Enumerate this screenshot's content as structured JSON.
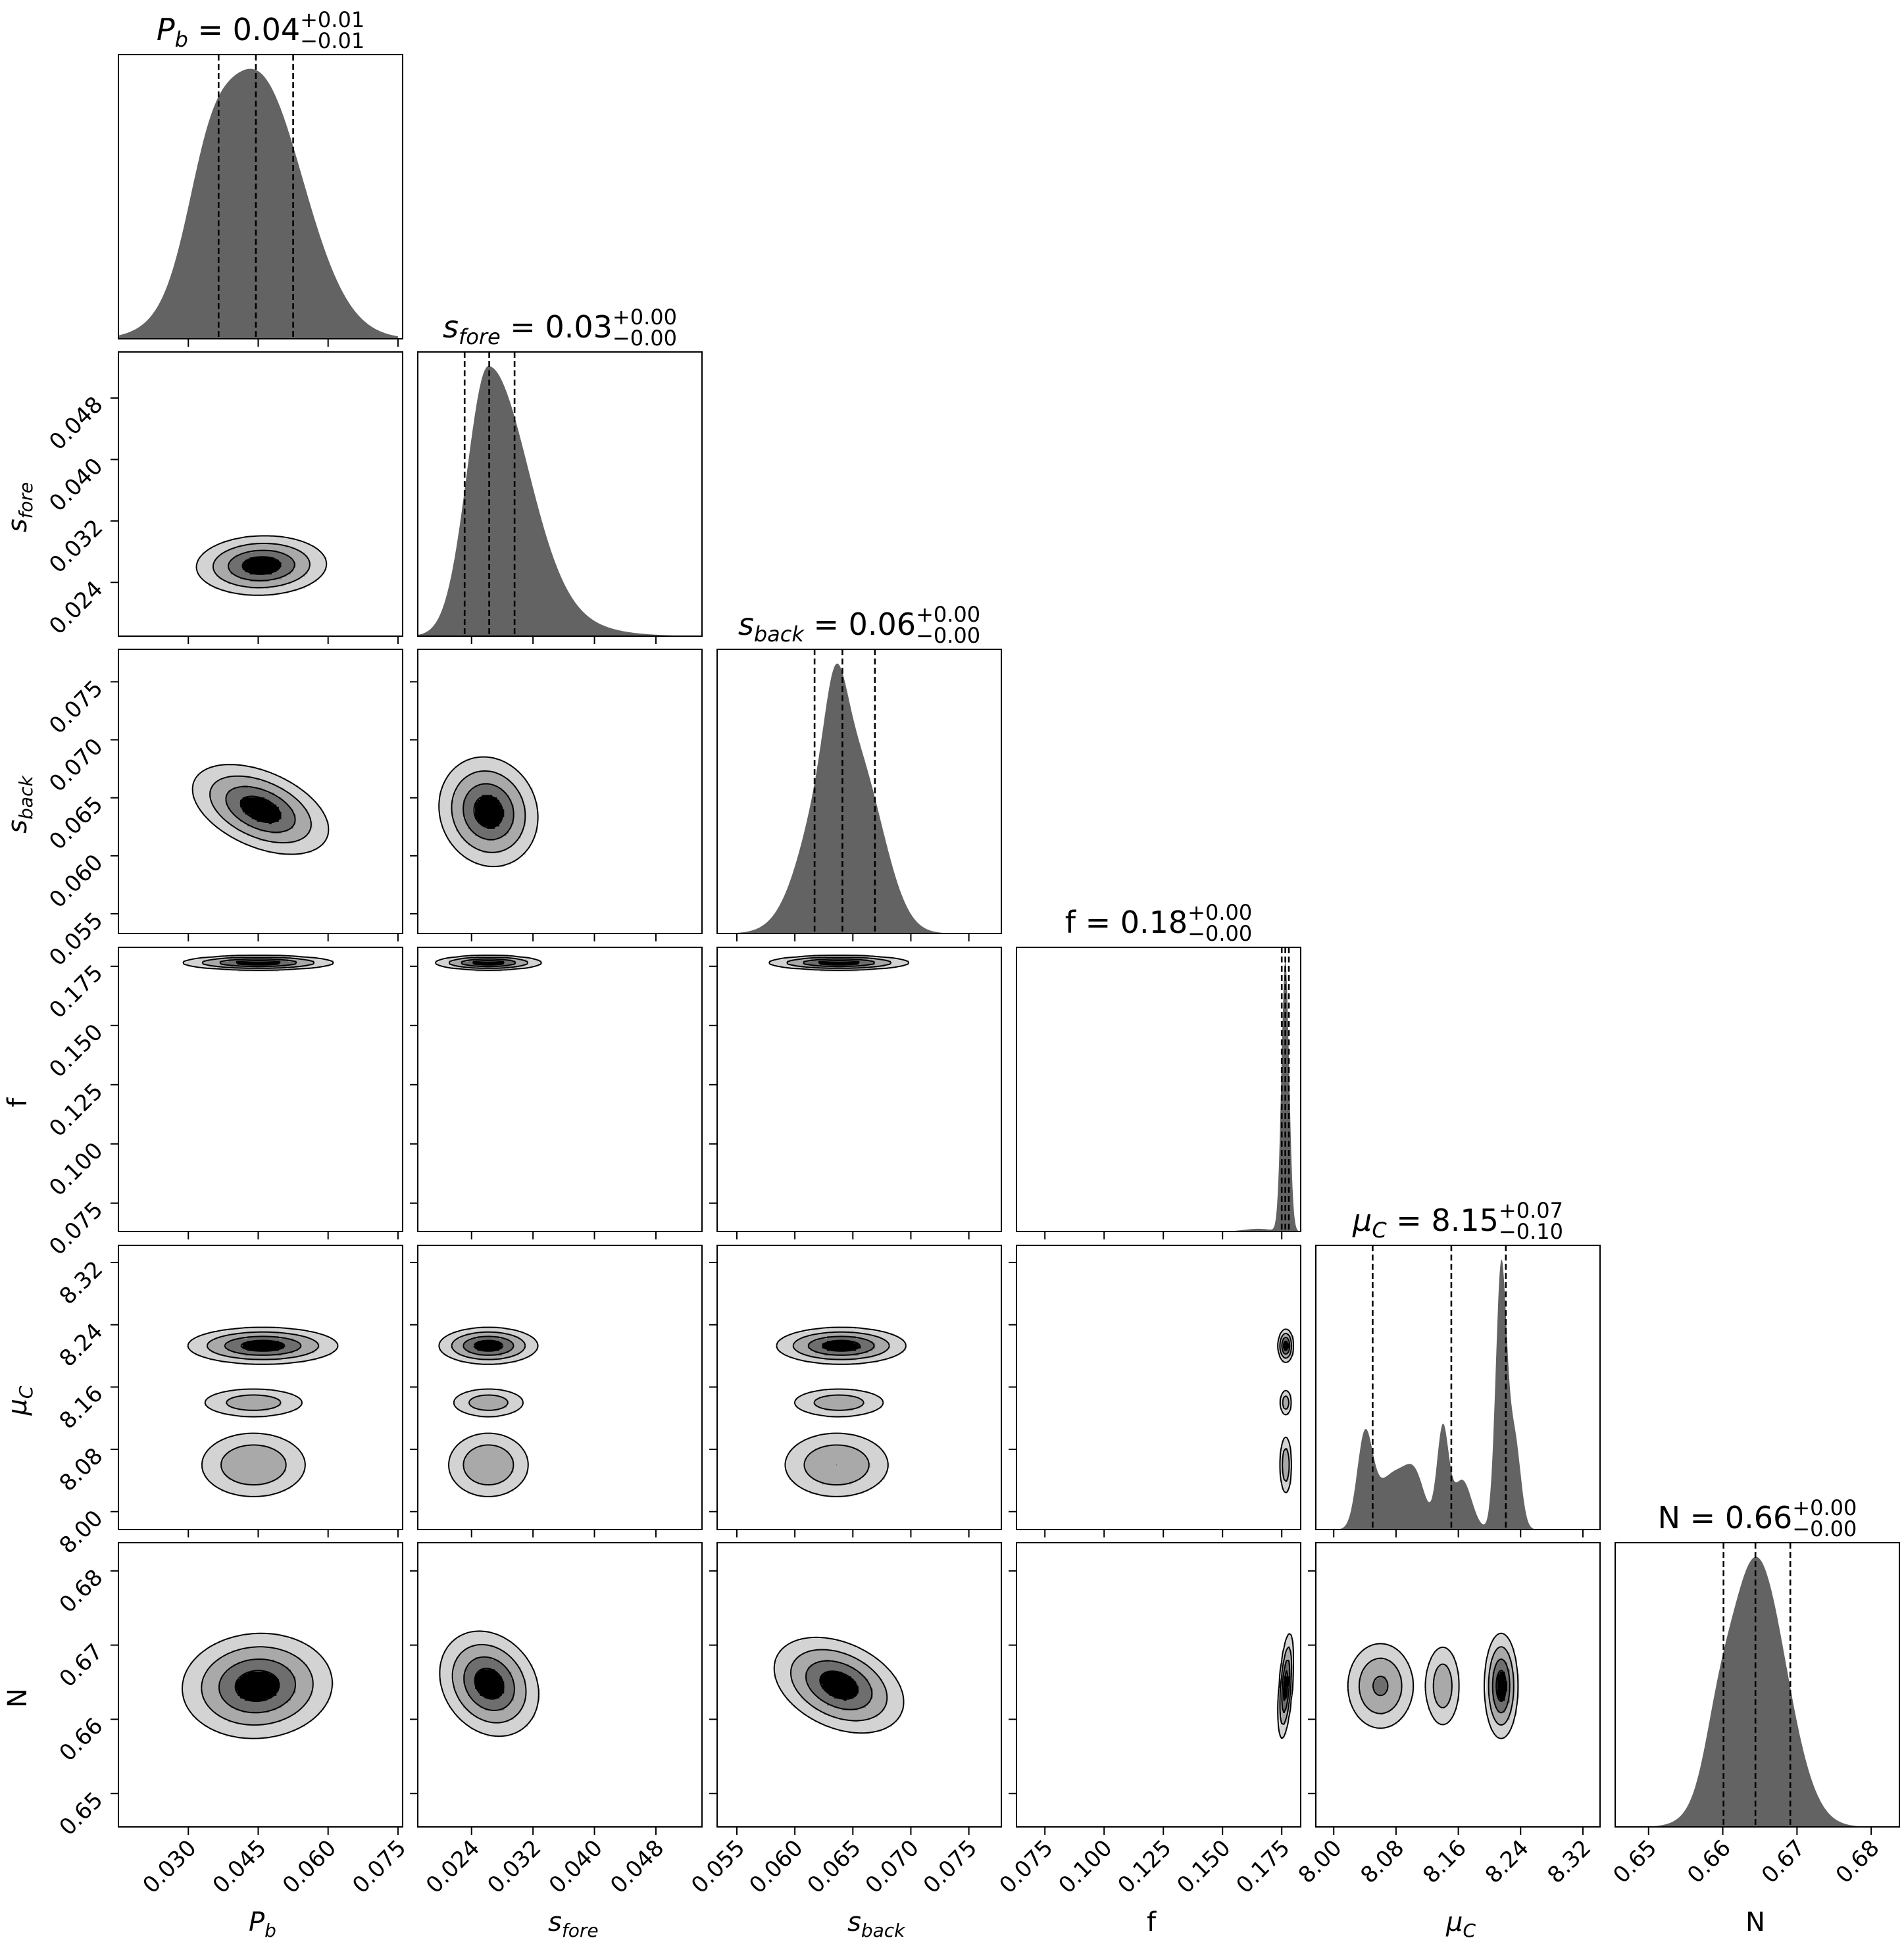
{
  "chart_data": {
    "type": "corner",
    "params": [
      {
        "key": "Pb",
        "name": "P",
        "sub": "b",
        "italic": true,
        "range": [
          0.015,
          0.076
        ],
        "ticks": [
          0.03,
          0.045,
          0.06,
          0.075
        ],
        "tick_labels": [
          "0.030",
          "0.045",
          "0.060",
          "0.075"
        ],
        "title_value": "0.04",
        "err_plus": "+0.01",
        "err_minus": "−0.01",
        "quantiles": [
          0.0365,
          0.0445,
          0.0525
        ],
        "hist": {
          "kind": "gauss",
          "peaks": [
            [
              0.0445,
              0.01,
              1.0
            ],
            [
              0.034,
              0.0045,
              0.22
            ]
          ]
        },
        "hist_range": [
          0.015,
          0.075
        ]
      },
      {
        "key": "sfore",
        "name": "s",
        "sub": "fore",
        "italic": true,
        "range": [
          0.017,
          0.054
        ],
        "ticks": [
          0.024,
          0.032,
          0.04,
          0.048
        ],
        "tick_labels": [
          "0.024",
          "0.032",
          "0.040",
          "0.048"
        ],
        "title_value": "0.03",
        "err_plus": "+0.00",
        "err_minus": "−0.00",
        "quantiles": [
          0.0231,
          0.0263,
          0.0296
        ],
        "hist": {
          "kind": "skew",
          "peak": 0.0262,
          "left_sigma": 0.0028,
          "right_sigma": 0.005,
          "tail_sigma": 0.0085
        },
        "hist_range": [
          0.017,
          0.05
        ]
      },
      {
        "key": "sback",
        "name": "s",
        "sub": "back",
        "italic": true,
        "range": [
          0.0533,
          0.0778
        ],
        "ticks": [
          0.055,
          0.06,
          0.065,
          0.07,
          0.075
        ],
        "tick_labels": [
          "0.055",
          "0.060",
          "0.065",
          "0.070",
          "0.075"
        ],
        "title_value": "0.06",
        "err_plus": "+0.00",
        "err_minus": "−0.00",
        "quantiles": [
          0.0617,
          0.0641,
          0.0669
        ],
        "hist": {
          "kind": "gauss",
          "peaks": [
            [
              0.0638,
              0.0026,
              0.78
            ],
            [
              0.0635,
              0.0009,
              0.27
            ],
            [
              0.0668,
              0.0018,
              0.16
            ]
          ]
        },
        "hist_range": [
          0.0535,
          0.0778
        ]
      },
      {
        "key": "f",
        "name": "f",
        "sub": "",
        "italic": false,
        "range": [
          0.063,
          0.183
        ],
        "ticks": [
          0.075,
          0.1,
          0.125,
          0.15,
          0.175
        ],
        "tick_labels": [
          "0.075",
          "0.100",
          "0.125",
          "0.150",
          "0.175"
        ],
        "title_value": "0.18",
        "err_plus": "+0.00",
        "err_minus": "−0.00",
        "quantiles": [
          0.175,
          0.1765,
          0.178
        ],
        "hist": {
          "kind": "gauss",
          "peaks": [
            [
              0.1765,
              0.0016,
              1.0
            ],
            [
              0.165,
              0.006,
              0.01
            ]
          ]
        },
        "hist_range": [
          0.11,
          0.183
        ]
      },
      {
        "key": "muC",
        "name": "μ",
        "sub": "C",
        "italic": true,
        "range": [
          7.977,
          8.342
        ],
        "ticks": [
          8.0,
          8.08,
          8.16,
          8.24,
          8.32
        ],
        "tick_labels": [
          "8.00",
          "8.08",
          "8.16",
          "8.24",
          "8.32"
        ],
        "title_value": "8.15",
        "err_plus": "+0.07",
        "err_minus": "−0.10",
        "quantiles": [
          8.05,
          8.151,
          8.221
        ],
        "hist": {
          "kind": "gauss",
          "peaks": [
            [
              8.04,
              0.01,
              0.36
            ],
            [
              8.06,
              0.012,
              0.08
            ],
            [
              8.08,
              0.015,
              0.18
            ],
            [
              8.105,
              0.013,
              0.19
            ],
            [
              8.14,
              0.0075,
              0.38
            ],
            [
              8.165,
              0.012,
              0.19
            ],
            [
              8.215,
              0.007,
              1.0
            ],
            [
              8.232,
              0.008,
              0.35
            ]
          ]
        },
        "hist_range": [
          8.0,
          8.3
        ]
      },
      {
        "key": "N",
        "name": "N",
        "sub": "",
        "italic": false,
        "range": [
          0.6455,
          0.6838
        ],
        "ticks": [
          0.65,
          0.66,
          0.67,
          0.68
        ],
        "tick_labels": [
          "0.65",
          "0.66",
          "0.67",
          "0.68"
        ],
        "title_value": "0.66",
        "err_plus": "+0.00",
        "err_minus": "−0.00",
        "quantiles": [
          0.6601,
          0.6644,
          0.6691
        ],
        "hist": {
          "kind": "gauss",
          "peaks": [
            [
              0.6645,
              0.004,
              1.0
            ],
            [
              0.6592,
              0.0017,
              0.12
            ]
          ]
        },
        "hist_range": [
          0.646,
          0.683
        ]
      }
    ],
    "contour_blobs": {
      "1,0": [
        {
          "cx": 0.0457,
          "cy": 0.0262,
          "sx": 0.0065,
          "sy": 0.0018,
          "rho": 0.05,
          "w": 1.0
        }
      ],
      "2,0": [
        {
          "cx": 0.0455,
          "cy": 0.064,
          "sx": 0.0068,
          "sy": 0.0018,
          "rho": -0.45,
          "w": 1.0
        }
      ],
      "3,0": [
        {
          "cx": 0.045,
          "cy": 0.1765,
          "sx": 0.0075,
          "sy": 0.0014,
          "rho": 0.0,
          "w": 1.0
        }
      ],
      "4,0": [
        {
          "cx": 0.046,
          "cy": 8.213,
          "sx": 0.0075,
          "sy": 0.011,
          "rho": 0.0,
          "w": 1.0
        },
        {
          "cx": 0.044,
          "cy": 8.14,
          "sx": 0.006,
          "sy": 0.01,
          "rho": 0.0,
          "w": 0.45
        },
        {
          "cx": 0.044,
          "cy": 8.06,
          "sx": 0.006,
          "sy": 0.022,
          "rho": 0.0,
          "w": 0.55
        }
      ],
      "5,0": [
        {
          "cx": 0.0448,
          "cy": 0.6645,
          "sx": 0.0075,
          "sy": 0.0033,
          "rho": 0.05,
          "w": 1.0
        }
      ],
      "2,1": [
        {
          "cx": 0.0262,
          "cy": 0.0638,
          "sx": 0.003,
          "sy": 0.0022,
          "rho": -0.1,
          "w": 1.0
        }
      ],
      "3,1": [
        {
          "cx": 0.0262,
          "cy": 0.1765,
          "sx": 0.0032,
          "sy": 0.0014,
          "rho": 0.0,
          "w": 1.0
        }
      ],
      "4,1": [
        {
          "cx": 0.0262,
          "cy": 8.213,
          "sx": 0.003,
          "sy": 0.011,
          "rho": 0.0,
          "w": 1.0
        },
        {
          "cx": 0.0262,
          "cy": 8.14,
          "sx": 0.0026,
          "sy": 0.01,
          "rho": 0.0,
          "w": 0.45
        },
        {
          "cx": 0.0262,
          "cy": 8.06,
          "sx": 0.0028,
          "sy": 0.022,
          "rho": 0.0,
          "w": 0.55
        }
      ],
      "5,1": [
        {
          "cx": 0.0263,
          "cy": 0.6648,
          "sx": 0.003,
          "sy": 0.0033,
          "rho": -0.2,
          "w": 1.0
        }
      ],
      "3,2": [
        {
          "cx": 0.0638,
          "cy": 0.1765,
          "sx": 0.0028,
          "sy": 0.0014,
          "rho": 0.0,
          "w": 1.0
        }
      ],
      "4,2": [
        {
          "cx": 0.064,
          "cy": 8.213,
          "sx": 0.0026,
          "sy": 0.011,
          "rho": 0.0,
          "w": 1.0
        },
        {
          "cx": 0.0638,
          "cy": 8.14,
          "sx": 0.0022,
          "sy": 0.01,
          "rho": 0.0,
          "w": 0.45
        },
        {
          "cx": 0.0636,
          "cy": 8.06,
          "sx": 0.0024,
          "sy": 0.022,
          "rho": 0.0,
          "w": 0.55
        }
      ],
      "5,2": [
        {
          "cx": 0.0638,
          "cy": 0.6646,
          "sx": 0.0026,
          "sy": 0.003,
          "rho": -0.35,
          "w": 1.0
        }
      ],
      "4,3": [
        {
          "cx": 0.1767,
          "cy": 8.213,
          "sx": 0.0015,
          "sy": 0.01,
          "rho": 0.0,
          "w": 1.0
        },
        {
          "cx": 0.1767,
          "cy": 8.14,
          "sx": 0.0013,
          "sy": 0.009,
          "rho": 0.0,
          "w": 0.45
        },
        {
          "cx": 0.1767,
          "cy": 8.06,
          "sx": 0.0013,
          "sy": 0.02,
          "rho": 0.0,
          "w": 0.5
        }
      ],
      "5,3": [
        {
          "cx": 0.1767,
          "cy": 0.6645,
          "sx": 0.0015,
          "sy": 0.0033,
          "rho": 0.5,
          "w": 1.0
        }
      ],
      "5,4": [
        {
          "cx": 8.06,
          "cy": 0.6645,
          "sx": 0.022,
          "sy": 0.003,
          "rho": 0.0,
          "w": 0.6
        },
        {
          "cx": 8.14,
          "cy": 0.6645,
          "sx": 0.012,
          "sy": 0.003,
          "rho": 0.0,
          "w": 0.45
        },
        {
          "cx": 8.215,
          "cy": 0.6645,
          "sx": 0.01,
          "sy": 0.0033,
          "rho": 0.0,
          "w": 1.0
        }
      ]
    },
    "contour_levels": [
      0.1,
      0.28,
      0.55,
      0.82
    ],
    "contour_fills": [
      "#d3d3d3",
      "#a9a9a9",
      "#6e6e6e",
      "#000000"
    ],
    "hist_fill": "#636363",
    "title_separator": " = "
  }
}
